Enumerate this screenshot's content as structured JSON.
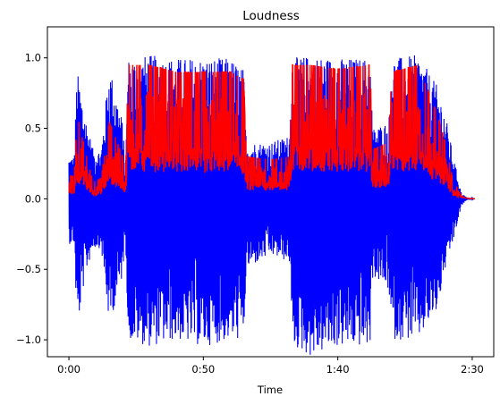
{
  "chart_data": {
    "type": "line",
    "title": "Loudness",
    "xlabel": "Time",
    "ylabel": "",
    "xlim": [
      -8,
      158
    ],
    "ylim": [
      -1.12,
      1.22
    ],
    "x_ticks": [
      {
        "value": 0,
        "label": "0:00"
      },
      {
        "value": 50,
        "label": "0:50"
      },
      {
        "value": 100,
        "label": "1:40"
      },
      {
        "value": 150,
        "label": "2:30"
      }
    ],
    "y_ticks": [
      {
        "value": -1.0,
        "label": "−1.0"
      },
      {
        "value": -0.5,
        "label": "−0.5"
      },
      {
        "value": 0.0,
        "label": "0.0"
      },
      {
        "value": 0.5,
        "label": "0.5"
      },
      {
        "value": 1.0,
        "label": "1.0"
      }
    ],
    "grid": false,
    "series": [
      {
        "color": "#0000ff",
        "style": "waveform",
        "duration": 151,
        "envelope": [
          [
            0,
            0.3,
            -0.32
          ],
          [
            2,
            0.3,
            -0.32
          ],
          [
            3,
            0.92,
            -0.95
          ],
          [
            6,
            0.6,
            -0.55
          ],
          [
            9,
            0.35,
            -0.35
          ],
          [
            12,
            0.35,
            -0.35
          ],
          [
            15,
            0.95,
            -0.9
          ],
          [
            20,
            0.55,
            -0.55
          ],
          [
            21,
            0.2,
            -0.22
          ],
          [
            22,
            1.0,
            -1.0
          ],
          [
            30,
            1.02,
            -1.05
          ],
          [
            40,
            1.0,
            -1.0
          ],
          [
            50,
            1.0,
            -1.05
          ],
          [
            60,
            1.0,
            -1.0
          ],
          [
            65,
            0.92,
            -1.0
          ],
          [
            66,
            0.4,
            -0.5
          ],
          [
            75,
            0.4,
            -0.4
          ],
          [
            82,
            0.45,
            -0.45
          ],
          [
            83,
            1.0,
            -1.05
          ],
          [
            90,
            1.02,
            -1.12
          ],
          [
            100,
            1.0,
            -1.05
          ],
          [
            112,
            1.0,
            -1.05
          ],
          [
            113,
            0.5,
            -0.55
          ],
          [
            119,
            0.55,
            -0.65
          ],
          [
            120,
            1.0,
            -1.0
          ],
          [
            130,
            1.02,
            -1.0
          ],
          [
            137,
            0.8,
            -0.8
          ],
          [
            140,
            0.6,
            -0.5
          ],
          [
            143,
            0.3,
            -0.3
          ],
          [
            146,
            0.04,
            -0.05
          ],
          [
            148,
            0.01,
            -0.01
          ],
          [
            151,
            0.0,
            0.0
          ]
        ]
      },
      {
        "color": "#ff0000",
        "style": "loudness",
        "duration": 151,
        "envelope": [
          [
            0,
            0.17
          ],
          [
            2,
            0.16
          ],
          [
            3,
            0.6
          ],
          [
            6,
            0.35
          ],
          [
            9,
            0.12
          ],
          [
            12,
            0.15
          ],
          [
            15,
            0.55
          ],
          [
            20,
            0.3
          ],
          [
            21,
            0.1
          ],
          [
            22,
            0.95
          ],
          [
            30,
            0.95
          ],
          [
            40,
            0.9
          ],
          [
            50,
            0.9
          ],
          [
            60,
            0.9
          ],
          [
            65,
            0.85
          ],
          [
            66,
            0.3
          ],
          [
            75,
            0.28
          ],
          [
            82,
            0.3
          ],
          [
            83,
            0.95
          ],
          [
            90,
            0.95
          ],
          [
            100,
            0.92
          ],
          [
            112,
            0.95
          ],
          [
            113,
            0.35
          ],
          [
            119,
            0.4
          ],
          [
            120,
            0.9
          ],
          [
            130,
            0.95
          ],
          [
            137,
            0.6
          ],
          [
            140,
            0.4
          ],
          [
            143,
            0.12
          ],
          [
            146,
            0.02
          ],
          [
            148,
            0.005
          ],
          [
            151,
            0.0
          ]
        ]
      }
    ]
  }
}
